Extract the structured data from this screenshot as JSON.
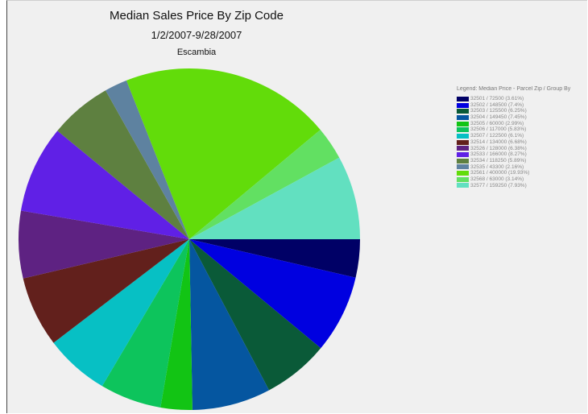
{
  "chart_data": {
    "type": "pie",
    "title": "Median Sales Price By Zip Code",
    "subtitle": "1/2/2007-9/28/2007",
    "region": "Escambia",
    "legend_title": "Legend: Median Price - Parcel Zip / Group By",
    "legend_position": "right",
    "start_angle_deg": 0,
    "direction": "clockwise",
    "slices": [
      {
        "label": "32501 / 72500  (3.61%)",
        "zip": "32501",
        "value": 72500,
        "percent": 3.61,
        "color": "#000066"
      },
      {
        "label": "32502 / 148500  (7.4%)",
        "zip": "32502",
        "value": 148500,
        "percent": 7.4,
        "color": "#0000e0"
      },
      {
        "label": "32503 / 125500  (6.25%)",
        "zip": "32503",
        "value": 125500,
        "percent": 6.25,
        "color": "#0a5a38"
      },
      {
        "label": "32504 / 149450  (7.45%)",
        "zip": "32504",
        "value": 149450,
        "percent": 7.45,
        "color": "#0556a0"
      },
      {
        "label": "32505 / 60000  (2.99%)",
        "zip": "32505",
        "value": 60000,
        "percent": 2.99,
        "color": "#12c414"
      },
      {
        "label": "32506 / 117000  (5.83%)",
        "zip": "32506",
        "value": 117000,
        "percent": 5.83,
        "color": "#0dc45c"
      },
      {
        "label": "32507 / 122500  (6.1%)",
        "zip": "32507",
        "value": 122500,
        "percent": 6.1,
        "color": "#07c0c4"
      },
      {
        "label": "32514 / 134000  (6.68%)",
        "zip": "32514",
        "value": 134000,
        "percent": 6.68,
        "color": "#62201c"
      },
      {
        "label": "32526 / 128000  (6.38%)",
        "zip": "32526",
        "value": 128000,
        "percent": 6.38,
        "color": "#5e2282"
      },
      {
        "label": "32533 / 166000  (8.27%)",
        "zip": "32533",
        "value": 166000,
        "percent": 8.27,
        "color": "#6020e6"
      },
      {
        "label": "32534 / 118250  (5.89%)",
        "zip": "32534",
        "value": 118250,
        "percent": 5.89,
        "color": "#5e8040"
      },
      {
        "label": "32535 / 43300  (2.16%)",
        "zip": "32535",
        "value": 43300,
        "percent": 2.16,
        "color": "#5e82a0"
      },
      {
        "label": "32561 / 400000  (19.93%)",
        "zip": "32561",
        "value": 400000,
        "percent": 19.93,
        "color": "#62dc0a"
      },
      {
        "label": "32568 / 63000  (3.14%)",
        "zip": "32568",
        "value": 63000,
        "percent": 3.14,
        "color": "#62e062"
      },
      {
        "label": "32577 / 159250  (7.93%)",
        "zip": "32577",
        "value": 159250,
        "percent": 7.93,
        "color": "#62e0c0"
      }
    ]
  }
}
